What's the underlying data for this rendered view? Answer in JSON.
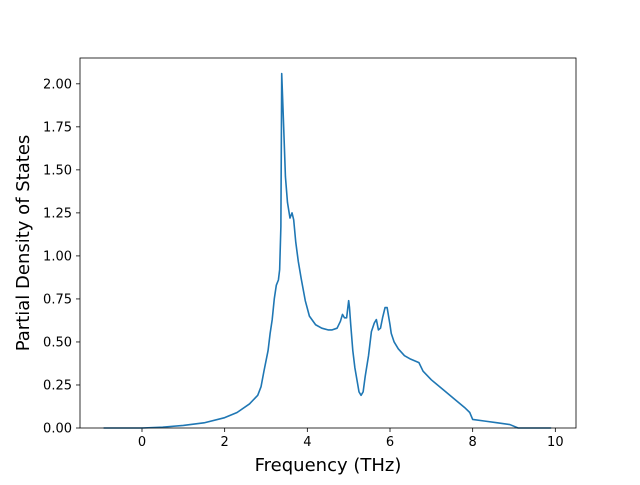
{
  "chart_data": {
    "type": "line",
    "title": "",
    "xlabel": "Frequency (THz)",
    "ylabel": "Partial Density of States",
    "xlim": [
      -1.5,
      10.5
    ],
    "ylim": [
      0.0,
      2.15
    ],
    "grid": false,
    "line_color": "#1f77b4",
    "x_ticks": [
      {
        "value": 0,
        "label": "0"
      },
      {
        "value": 2,
        "label": "2"
      },
      {
        "value": 4,
        "label": "4"
      },
      {
        "value": 6,
        "label": "6"
      },
      {
        "value": 8,
        "label": "8"
      },
      {
        "value": 10,
        "label": "10"
      }
    ],
    "y_ticks": [
      {
        "value": 0.0,
        "label": "0.00"
      },
      {
        "value": 0.25,
        "label": "0.25"
      },
      {
        "value": 0.5,
        "label": "0.50"
      },
      {
        "value": 0.75,
        "label": "0.75"
      },
      {
        "value": 1.0,
        "label": "1.00"
      },
      {
        "value": 1.25,
        "label": "1.25"
      },
      {
        "value": 1.5,
        "label": "1.50"
      },
      {
        "value": 1.75,
        "label": "1.75"
      },
      {
        "value": 2.0,
        "label": "2.00"
      }
    ],
    "series": [
      {
        "x": [
          -0.93,
          0.0,
          0.5,
          1.0,
          1.5,
          2.0,
          2.3,
          2.6,
          2.8,
          2.88,
          2.95,
          3.05,
          3.1,
          3.15,
          3.2,
          3.25,
          3.3,
          3.33,
          3.36,
          3.38,
          3.42,
          3.47,
          3.52,
          3.58,
          3.63,
          3.67,
          3.72,
          3.78,
          3.85,
          3.95,
          4.05,
          4.2,
          4.35,
          4.5,
          4.6,
          4.72,
          4.8,
          4.85,
          4.9,
          4.95,
          5.0,
          5.02,
          5.05,
          5.1,
          5.15,
          5.25,
          5.3,
          5.35,
          5.4,
          5.48,
          5.55,
          5.62,
          5.67,
          5.72,
          5.77,
          5.82,
          5.88,
          5.93,
          6.0,
          6.03,
          6.1,
          6.2,
          6.35,
          6.5,
          6.7,
          6.8,
          7.0,
          7.3,
          7.6,
          7.8,
          7.93,
          8.0,
          8.3,
          8.6,
          8.9,
          9.1,
          9.5,
          9.9
        ],
        "y": [
          0.0,
          0.0,
          0.005,
          0.015,
          0.03,
          0.06,
          0.09,
          0.14,
          0.19,
          0.24,
          0.33,
          0.45,
          0.55,
          0.63,
          0.75,
          0.83,
          0.86,
          0.92,
          1.17,
          2.06,
          1.8,
          1.46,
          1.31,
          1.22,
          1.25,
          1.21,
          1.08,
          0.97,
          0.87,
          0.74,
          0.65,
          0.6,
          0.58,
          0.57,
          0.57,
          0.58,
          0.62,
          0.66,
          0.64,
          0.64,
          0.74,
          0.7,
          0.6,
          0.45,
          0.35,
          0.21,
          0.19,
          0.21,
          0.3,
          0.42,
          0.56,
          0.61,
          0.63,
          0.57,
          0.58,
          0.64,
          0.7,
          0.7,
          0.6,
          0.55,
          0.5,
          0.46,
          0.42,
          0.4,
          0.38,
          0.33,
          0.28,
          0.22,
          0.16,
          0.12,
          0.09,
          0.05,
          0.04,
          0.03,
          0.02,
          0.0,
          0.0,
          0.0
        ]
      }
    ]
  }
}
